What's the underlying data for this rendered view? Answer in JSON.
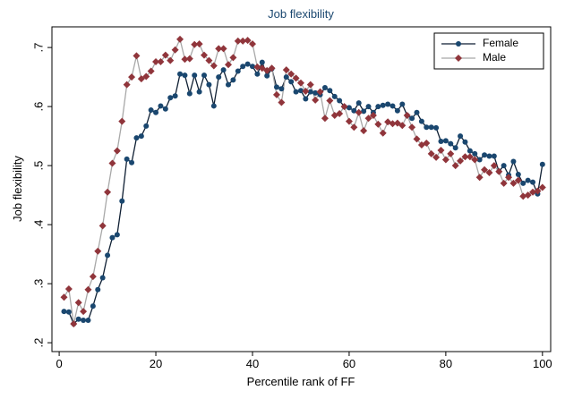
{
  "chart_data": {
    "type": "line",
    "title": "Job flexibility",
    "x_label": "Percentile rank of FF",
    "y_label": "Job flexibility",
    "x": [
      1,
      2,
      3,
      4,
      5,
      6,
      7,
      8,
      9,
      10,
      11,
      12,
      13,
      14,
      15,
      16,
      17,
      18,
      19,
      20,
      21,
      22,
      23,
      24,
      25,
      26,
      27,
      28,
      29,
      30,
      31,
      32,
      33,
      34,
      35,
      36,
      37,
      38,
      39,
      40,
      41,
      42,
      43,
      44,
      45,
      46,
      47,
      48,
      49,
      50,
      51,
      52,
      53,
      54,
      55,
      56,
      57,
      58,
      59,
      60,
      61,
      62,
      63,
      64,
      65,
      66,
      67,
      68,
      69,
      70,
      71,
      72,
      73,
      74,
      75,
      76,
      77,
      78,
      79,
      80,
      81,
      82,
      83,
      84,
      85,
      86,
      87,
      88,
      89,
      90,
      91,
      92,
      93,
      94,
      95,
      96,
      97,
      98,
      99,
      100
    ],
    "series": [
      {
        "name": "Female",
        "color": "#1a476f",
        "line_color": "#0f1f33",
        "marker": "circle",
        "values": [
          0.253,
          0.252,
          0.232,
          0.24,
          0.238,
          0.238,
          0.262,
          0.29,
          0.31,
          0.348,
          0.378,
          0.383,
          0.44,
          0.511,
          0.505,
          0.547,
          0.55,
          0.567,
          0.594,
          0.59,
          0.601,
          0.596,
          0.615,
          0.618,
          0.655,
          0.653,
          0.622,
          0.653,
          0.625,
          0.653,
          0.637,
          0.601,
          0.65,
          0.662,
          0.637,
          0.645,
          0.66,
          0.668,
          0.672,
          0.668,
          0.655,
          0.675,
          0.652,
          0.664,
          0.633,
          0.63,
          0.65,
          0.642,
          0.625,
          0.627,
          0.613,
          0.625,
          0.623,
          0.62,
          0.632,
          0.627,
          0.617,
          0.61,
          0.6,
          0.598,
          0.593,
          0.606,
          0.592,
          0.6,
          0.59,
          0.6,
          0.602,
          0.604,
          0.601,
          0.593,
          0.604,
          0.585,
          0.58,
          0.59,
          0.575,
          0.565,
          0.565,
          0.564,
          0.541,
          0.542,
          0.537,
          0.53,
          0.55,
          0.54,
          0.525,
          0.52,
          0.51,
          0.518,
          0.516,
          0.516,
          0.49,
          0.5,
          0.484,
          0.507,
          0.485,
          0.47,
          0.475,
          0.472,
          0.452,
          0.502
        ]
      },
      {
        "name": "Male",
        "color": "#90353b",
        "line_color": "#a8a8a8",
        "marker": "diamond",
        "values": [
          0.277,
          0.291,
          0.232,
          0.268,
          0.253,
          0.29,
          0.312,
          0.355,
          0.398,
          0.455,
          0.504,
          0.525,
          0.575,
          0.637,
          0.65,
          0.686,
          0.647,
          0.651,
          0.66,
          0.676,
          0.676,
          0.687,
          0.678,
          0.696,
          0.714,
          0.68,
          0.681,
          0.705,
          0.706,
          0.687,
          0.678,
          0.669,
          0.698,
          0.698,
          0.671,
          0.683,
          0.711,
          0.711,
          0.712,
          0.706,
          0.667,
          0.665,
          0.661,
          0.665,
          0.62,
          0.607,
          0.662,
          0.655,
          0.648,
          0.64,
          0.626,
          0.637,
          0.611,
          0.625,
          0.58,
          0.61,
          0.585,
          0.588,
          0.6,
          0.575,
          0.565,
          0.59,
          0.559,
          0.58,
          0.585,
          0.57,
          0.555,
          0.574,
          0.571,
          0.572,
          0.568,
          0.585,
          0.565,
          0.545,
          0.535,
          0.538,
          0.52,
          0.514,
          0.526,
          0.51,
          0.52,
          0.5,
          0.508,
          0.515,
          0.515,
          0.51,
          0.48,
          0.493,
          0.488,
          0.5,
          0.49,
          0.47,
          0.48,
          0.47,
          0.475,
          0.448,
          0.45,
          0.455,
          0.457,
          0.463
        ]
      }
    ],
    "xlim": [
      -1.5,
      101.7
    ],
    "ylim": [
      0.185,
      0.735
    ],
    "xticks": [
      0,
      20,
      40,
      60,
      80,
      100
    ],
    "yticks": [
      {
        "value": 0.2,
        "label": ".2"
      },
      {
        "value": 0.3,
        "label": ".3"
      },
      {
        "value": 0.4,
        "label": ".4"
      },
      {
        "value": 0.5,
        "label": ".5"
      },
      {
        "value": 0.6,
        "label": ".6"
      },
      {
        "value": 0.7,
        "label": ".7"
      }
    ],
    "grid": false,
    "legend": "top-right"
  }
}
